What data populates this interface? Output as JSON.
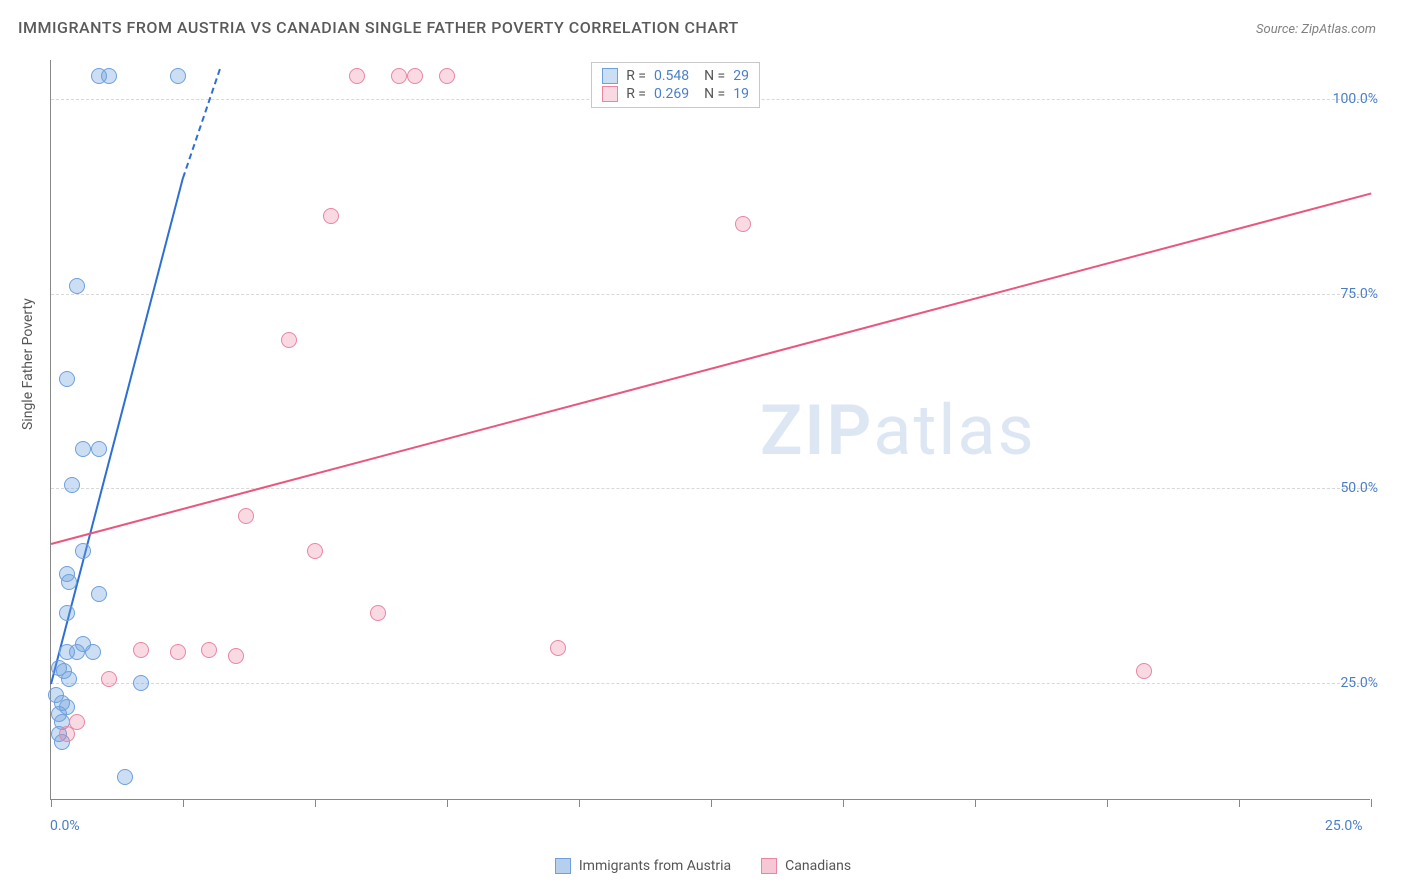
{
  "title": "IMMIGRANTS FROM AUSTRIA VS CANADIAN SINGLE FATHER POVERTY CORRELATION CHART",
  "source": "Source: ZipAtlas.com",
  "watermark": {
    "bold": "ZIP",
    "light": "atlas"
  },
  "chart": {
    "type": "scatter",
    "background_color": "#ffffff",
    "grid_color": "#d8d8d8",
    "axis_color": "#888888",
    "text_color": "#555555",
    "value_color": "#4a7ec9",
    "ylabel": "Single Father Poverty",
    "xlim": [
      0,
      25
    ],
    "ylim": [
      10,
      105
    ],
    "xticks": [
      0,
      2.5,
      5,
      7.5,
      10,
      12.5,
      15,
      17.5,
      20,
      22.5,
      25
    ],
    "xtick_labels_shown": {
      "0": "0.0%",
      "25": "25.0%"
    },
    "yticks": [
      25,
      50,
      75,
      100
    ],
    "ytick_labels": [
      "25.0%",
      "50.0%",
      "75.0%",
      "100.0%"
    ],
    "marker_radius": 8,
    "line_width": 2,
    "series": [
      {
        "name": "Immigrants from Austria",
        "fill_color": "rgba(110,160,220,0.35)",
        "stroke_color": "#6ea0dc",
        "trend_color": "#2e6fd4",
        "R": "0.548",
        "N": "29",
        "trend": {
          "x1": 0.0,
          "y1": 25.0,
          "x2": 2.5,
          "y2": 90.0
        },
        "trend_dashed_ext": {
          "x1": 2.5,
          "y1": 90.0,
          "x2": 3.2,
          "y2": 104.0
        },
        "points": [
          {
            "x": 0.9,
            "y": 103.0
          },
          {
            "x": 1.1,
            "y": 103.0
          },
          {
            "x": 2.4,
            "y": 103.0
          },
          {
            "x": 0.5,
            "y": 76.0
          },
          {
            "x": 0.3,
            "y": 64.0
          },
          {
            "x": 0.6,
            "y": 55.0
          },
          {
            "x": 0.9,
            "y": 55.0
          },
          {
            "x": 0.4,
            "y": 50.5
          },
          {
            "x": 0.6,
            "y": 42.0
          },
          {
            "x": 0.3,
            "y": 39.0
          },
          {
            "x": 0.35,
            "y": 38.0
          },
          {
            "x": 0.9,
            "y": 36.5
          },
          {
            "x": 0.3,
            "y": 34.0
          },
          {
            "x": 0.6,
            "y": 30.0
          },
          {
            "x": 0.3,
            "y": 29.0
          },
          {
            "x": 0.5,
            "y": 29.0
          },
          {
            "x": 0.8,
            "y": 29.0
          },
          {
            "x": 0.15,
            "y": 27.0
          },
          {
            "x": 0.25,
            "y": 26.5
          },
          {
            "x": 0.35,
            "y": 25.5
          },
          {
            "x": 1.7,
            "y": 25.0
          },
          {
            "x": 0.1,
            "y": 23.5
          },
          {
            "x": 0.2,
            "y": 22.5
          },
          {
            "x": 0.3,
            "y": 22.0
          },
          {
            "x": 0.15,
            "y": 21.0
          },
          {
            "x": 0.2,
            "y": 20.0
          },
          {
            "x": 0.15,
            "y": 18.5
          },
          {
            "x": 0.2,
            "y": 17.5
          },
          {
            "x": 1.4,
            "y": 13.0
          }
        ]
      },
      {
        "name": "Canadians",
        "fill_color": "rgba(235,130,160,0.3)",
        "stroke_color": "#e986a4",
        "trend_color": "#e9567e",
        "R": "0.269",
        "N": "19",
        "trend": {
          "x1": 0.0,
          "y1": 43.0,
          "x2": 25.0,
          "y2": 88.0
        },
        "points": [
          {
            "x": 5.8,
            "y": 103.0
          },
          {
            "x": 6.6,
            "y": 103.0
          },
          {
            "x": 6.9,
            "y": 103.0
          },
          {
            "x": 7.5,
            "y": 103.0
          },
          {
            "x": 5.3,
            "y": 85.0
          },
          {
            "x": 13.1,
            "y": 84.0
          },
          {
            "x": 4.5,
            "y": 69.0
          },
          {
            "x": 3.7,
            "y": 46.5
          },
          {
            "x": 5.0,
            "y": 42.0
          },
          {
            "x": 6.2,
            "y": 34.0
          },
          {
            "x": 9.6,
            "y": 29.5
          },
          {
            "x": 1.7,
            "y": 29.2
          },
          {
            "x": 2.4,
            "y": 29.0
          },
          {
            "x": 3.0,
            "y": 29.2
          },
          {
            "x": 3.5,
            "y": 28.5
          },
          {
            "x": 20.7,
            "y": 26.5
          },
          {
            "x": 1.1,
            "y": 25.5
          },
          {
            "x": 0.5,
            "y": 20.0
          },
          {
            "x": 0.3,
            "y": 18.5
          }
        ]
      }
    ],
    "legend_box": {
      "r_label": "R =",
      "n_label": "N ="
    },
    "legend_bottom": [
      {
        "label": "Immigrants from Austria",
        "fill": "rgba(110,160,220,0.5)",
        "stroke": "#6ea0dc"
      },
      {
        "label": "Canadians",
        "fill": "rgba(235,130,160,0.45)",
        "stroke": "#e986a4"
      }
    ]
  }
}
